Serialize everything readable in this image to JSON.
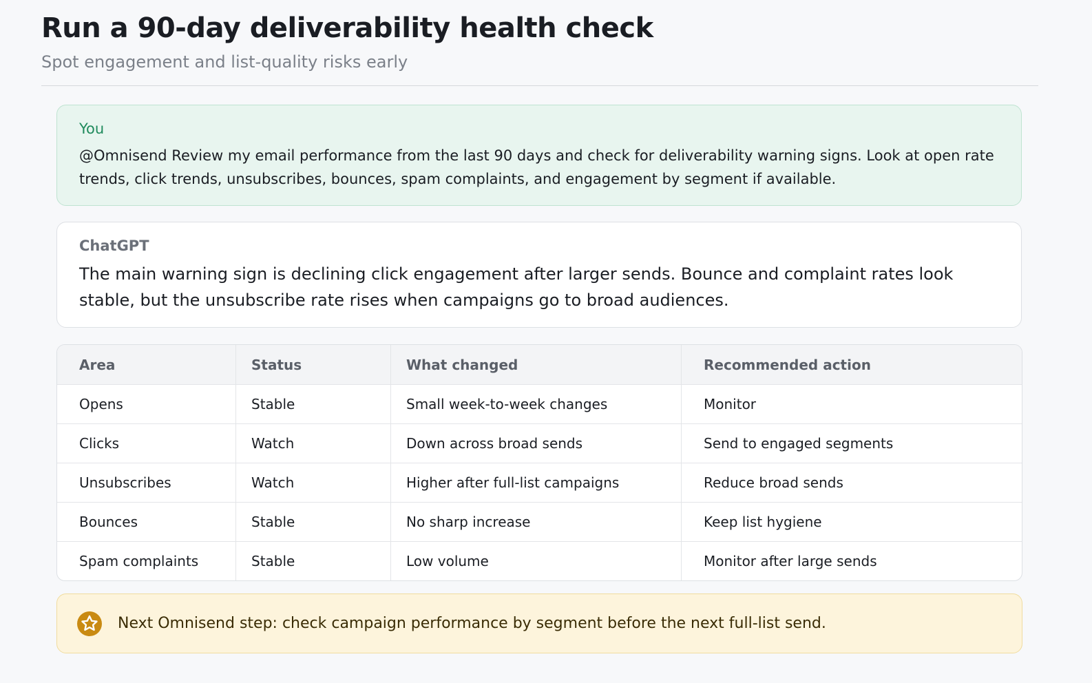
{
  "header": {
    "title": "Run a 90-day deliverability health check",
    "subtitle": "Spot engagement and list-quality risks early"
  },
  "user_message": {
    "author": "You",
    "text": "@Omnisend Review my email performance from the last 90 days and check for deliverability warning signs. Look at open rate trends, click trends, unsubscribes, bounces, spam complaints, and engagement by segment if available."
  },
  "assistant_message": {
    "author": "ChatGPT",
    "text": "The main warning sign is declining click engagement after larger sends. Bounce and complaint rates look stable, but the unsubscribe rate rises when campaigns go to broad audiences."
  },
  "table": {
    "columns": [
      "Area",
      "Status",
      "What changed",
      "Recommended action"
    ],
    "rows": [
      [
        "Opens",
        "Stable",
        "Small week-to-week changes",
        "Monitor"
      ],
      [
        "Clicks",
        "Watch",
        "Down across broad sends",
        "Send to engaged segments"
      ],
      [
        "Unsubscribes",
        "Watch",
        "Higher after full-list campaigns",
        "Reduce broad sends"
      ],
      [
        "Bounces",
        "Stable",
        "No sharp increase",
        "Keep list hygiene"
      ],
      [
        "Spam complaints",
        "Stable",
        "Low volume",
        "Monitor after large sends"
      ]
    ]
  },
  "next_step": {
    "text": "Next Omnisend step: check campaign performance by segment before the next full-list send."
  }
}
